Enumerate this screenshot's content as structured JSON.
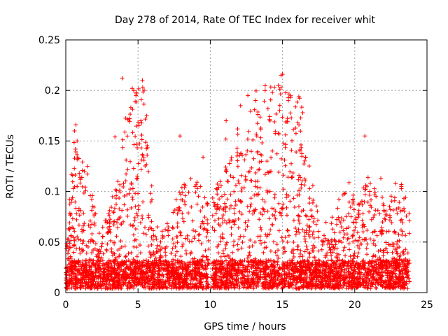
{
  "chart_data": {
    "type": "scatter",
    "title": "Day 278 of 2014, Rate Of TEC Index for receiver whit",
    "xlabel": "GPS time / hours",
    "ylabel": "ROTI / TECUs",
    "xlim": [
      0,
      25
    ],
    "ylim": [
      0,
      0.25
    ],
    "x_ticks": [
      0,
      5,
      10,
      15,
      20,
      25
    ],
    "y_ticks": [
      0,
      0.05,
      0.1,
      0.15,
      0.2,
      0.25
    ],
    "x_tick_labels": [
      "0",
      "5",
      "10",
      "15",
      "20",
      "25"
    ],
    "y_tick_labels": [
      "0",
      "0.05",
      "0.1",
      "0.15",
      "0.2",
      "0.25"
    ],
    "grid": true,
    "marker": "+",
    "marker_color": "#ff0000",
    "series": [
      {
        "name": "ROTI",
        "data_extent_x": [
          0,
          23.8
        ],
        "data_gap_x": [
          9.9,
          10.1
        ],
        "notable_points": [
          {
            "x": 0.7,
            "y": 0.166
          },
          {
            "x": 0.6,
            "y": 0.16
          },
          {
            "x": 1.5,
            "y": 0.125
          },
          {
            "x": 3.4,
            "y": 0.154
          },
          {
            "x": 3.9,
            "y": 0.212
          },
          {
            "x": 4.5,
            "y": 0.183
          },
          {
            "x": 4.6,
            "y": 0.202
          },
          {
            "x": 4.7,
            "y": 0.2
          },
          {
            "x": 5.3,
            "y": 0.21
          },
          {
            "x": 5.2,
            "y": 0.17
          },
          {
            "x": 7.9,
            "y": 0.155
          },
          {
            "x": 9.5,
            "y": 0.134
          },
          {
            "x": 11.1,
            "y": 0.17
          },
          {
            "x": 12.1,
            "y": 0.185
          },
          {
            "x": 12.6,
            "y": 0.195
          },
          {
            "x": 13.8,
            "y": 0.2
          },
          {
            "x": 14.3,
            "y": 0.198
          },
          {
            "x": 14.9,
            "y": 0.215
          },
          {
            "x": 15.0,
            "y": 0.216
          },
          {
            "x": 15.4,
            "y": 0.19
          },
          {
            "x": 16.4,
            "y": 0.178
          },
          {
            "x": 20.7,
            "y": 0.155
          },
          {
            "x": 21.8,
            "y": 0.113
          },
          {
            "x": 23.4,
            "y": 0.093
          }
        ]
      }
    ]
  }
}
